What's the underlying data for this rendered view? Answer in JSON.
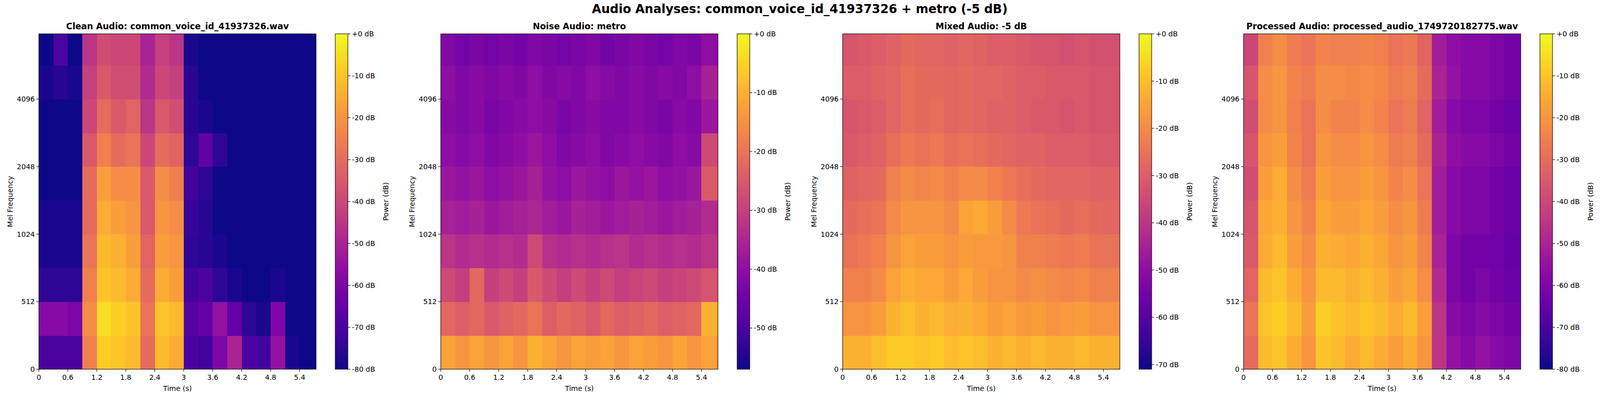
{
  "title": "Audio Analyses: common_voice_id_41937326 + metro (-5 dB)",
  "chart_data": [
    {
      "type": "heatmap",
      "title": "Clean Audio: common_voice_id_41937326.wav",
      "x_label": "Time (s)",
      "y_label": "Mel Frequency",
      "log": "y",
      "xlim": [
        0,
        5.74
      ],
      "xticks": [
        0,
        0.6,
        1.2,
        1.8,
        2.4,
        3,
        3.6,
        4.2,
        4.8,
        5.4
      ],
      "ylim": [
        0,
        8000
      ],
      "yticks": [
        0,
        512,
        1024,
        2048,
        4096
      ],
      "x_edges": [
        0,
        0.3,
        0.6,
        0.9,
        1.2,
        1.5,
        1.8,
        2.1,
        2.4,
        2.7,
        3.0,
        3.3,
        3.6,
        3.9,
        4.2,
        4.5,
        4.8,
        5.1,
        5.4,
        5.7,
        5.74
      ],
      "y_edges": [
        0,
        256,
        512,
        724,
        1024,
        1448,
        2048,
        2896,
        4096,
        5793,
        8000
      ],
      "cells": [
        [
          -70,
          -70,
          -70,
          -25,
          -8,
          -10,
          -12,
          -30,
          -12,
          -15,
          -70,
          -72,
          -60,
          -50,
          -70,
          -72,
          -55,
          -78,
          -80,
          -80
        ],
        [
          -58,
          -58,
          -60,
          -22,
          -5,
          -8,
          -10,
          -28,
          -10,
          -12,
          -68,
          -65,
          -55,
          -65,
          -75,
          -78,
          -60,
          -80,
          -80,
          -80
        ],
        [
          -75,
          -75,
          -75,
          -25,
          -10,
          -12,
          -15,
          -30,
          -15,
          -18,
          -72,
          -70,
          -75,
          -78,
          -80,
          -80,
          -78,
          -80,
          -80,
          -80
        ],
        [
          -78,
          -78,
          -78,
          -28,
          -12,
          -14,
          -18,
          -32,
          -18,
          -20,
          -75,
          -76,
          -78,
          -80,
          -80,
          -80,
          -80,
          -80,
          -80,
          -80
        ],
        [
          -78,
          -78,
          -78,
          -30,
          -15,
          -18,
          -20,
          -35,
          -20,
          -22,
          -74,
          -76,
          -80,
          -80,
          -80,
          -80,
          -80,
          -80,
          -80,
          -80
        ],
        [
          -80,
          -80,
          -80,
          -30,
          -18,
          -22,
          -22,
          -35,
          -22,
          -25,
          -72,
          -75,
          -80,
          -80,
          -80,
          -80,
          -80,
          -80,
          -80,
          -80
        ],
        [
          -80,
          -80,
          -80,
          -35,
          -25,
          -30,
          -28,
          -40,
          -30,
          -32,
          -75,
          -66,
          -75,
          -80,
          -80,
          -80,
          -80,
          -80,
          -80,
          -80
        ],
        [
          -80,
          -80,
          -80,
          -40,
          -30,
          -35,
          -32,
          -45,
          -35,
          -38,
          -76,
          -78,
          -80,
          -80,
          -80,
          -80,
          -80,
          -80,
          -80,
          -80
        ],
        [
          -78,
          -76,
          -78,
          -42,
          -35,
          -38,
          -38,
          -48,
          -40,
          -42,
          -76,
          -80,
          -80,
          -80,
          -80,
          -80,
          -80,
          -80,
          -80,
          -80
        ],
        [
          -80,
          -70,
          -80,
          -45,
          -38,
          -40,
          -40,
          -50,
          -42,
          -45,
          -78,
          -80,
          -80,
          -80,
          -80,
          -80,
          -80,
          -80,
          -80,
          -80
        ]
      ],
      "colorbar_label": "Power (dB)",
      "colorbar_range": [
        -80,
        0
      ],
      "colorbar_ticks": [
        {
          "value": 0,
          "label": "+0 dB"
        },
        {
          "value": -10,
          "label": "-10 dB"
        },
        {
          "value": -20,
          "label": "-20 dB"
        },
        {
          "value": -30,
          "label": "-30 dB"
        },
        {
          "value": -40,
          "label": "-40 dB"
        },
        {
          "value": -50,
          "label": "-50 dB"
        },
        {
          "value": -60,
          "label": "-60 dB"
        },
        {
          "value": -70,
          "label": "-70 dB"
        },
        {
          "value": -80,
          "label": "-80 dB"
        }
      ]
    },
    {
      "type": "heatmap",
      "title": "Noise Audio: metro",
      "x_label": "Time (s)",
      "y_label": "Mel Frequency",
      "log": "y",
      "xlim": [
        0,
        5.74
      ],
      "xticks": [
        0,
        0.6,
        1.2,
        1.8,
        2.4,
        3,
        3.6,
        4.2,
        4.8,
        5.4
      ],
      "ylim": [
        0,
        8000
      ],
      "yticks": [
        0,
        512,
        1024,
        2048,
        4096
      ],
      "x_edges": [
        0,
        0.3,
        0.6,
        0.9,
        1.2,
        1.5,
        1.8,
        2.1,
        2.4,
        2.7,
        3.0,
        3.3,
        3.6,
        3.9,
        4.2,
        4.5,
        4.8,
        5.1,
        5.4,
        5.7,
        5.74
      ],
      "y_edges": [
        0,
        256,
        512,
        724,
        1024,
        1448,
        2048,
        2896,
        4096,
        5793,
        8000
      ],
      "cells": [
        [
          -12,
          -14,
          -12,
          -14,
          -12,
          -14,
          -10,
          -12,
          -14,
          -12,
          -13,
          -12,
          -14,
          -12,
          -13,
          -14,
          -12,
          -14,
          -12,
          -14
        ],
        [
          -22,
          -24,
          -22,
          -25,
          -23,
          -22,
          -20,
          -24,
          -22,
          -23,
          -25,
          -22,
          -24,
          -23,
          -22,
          -24,
          -23,
          -22,
          -10,
          -10
        ],
        [
          -28,
          -30,
          -22,
          -30,
          -28,
          -30,
          -25,
          -28,
          -30,
          -28,
          -30,
          -28,
          -30,
          -29,
          -28,
          -30,
          -29,
          -28,
          -26,
          -26
        ],
        [
          -32,
          -34,
          -33,
          -34,
          -33,
          -34,
          -28,
          -33,
          -34,
          -33,
          -34,
          -33,
          -32,
          -34,
          -33,
          -34,
          -33,
          -34,
          -32,
          -32
        ],
        [
          -36,
          -37,
          -36,
          -38,
          -37,
          -36,
          -35,
          -37,
          -38,
          -36,
          -37,
          -38,
          -37,
          -36,
          -37,
          -38,
          -37,
          -36,
          -34,
          -34
        ],
        [
          -38,
          -39,
          -38,
          -40,
          -39,
          -38,
          -36,
          -39,
          -40,
          -38,
          -39,
          -40,
          -38,
          -39,
          -38,
          -40,
          -39,
          -38,
          -25,
          -25
        ],
        [
          -40,
          -41,
          -40,
          -42,
          -41,
          -40,
          -38,
          -40,
          -42,
          -41,
          -40,
          -42,
          -41,
          -40,
          -41,
          -42,
          -40,
          -41,
          -28,
          -28
        ],
        [
          -41,
          -42,
          -41,
          -43,
          -42,
          -41,
          -40,
          -41,
          -43,
          -42,
          -41,
          -42,
          -42,
          -41,
          -42,
          -43,
          -41,
          -42,
          -38,
          -38
        ],
        [
          -40,
          -42,
          -41,
          -42,
          -41,
          -42,
          -40,
          -42,
          -41,
          -42,
          -40,
          -41,
          -42,
          -41,
          -42,
          -41,
          -42,
          -40,
          -36,
          -36
        ],
        [
          -42,
          -44,
          -43,
          -44,
          -43,
          -44,
          -42,
          -43,
          -44,
          -43,
          -42,
          -44,
          -43,
          -42,
          -43,
          -44,
          -42,
          -43,
          -40,
          -40
        ]
      ],
      "colorbar_label": "Power (dB)",
      "colorbar_range": [
        -57,
        0
      ],
      "colorbar_ticks": [
        {
          "value": 0,
          "label": "+0 dB"
        },
        {
          "value": -10,
          "label": "-10 dB"
        },
        {
          "value": -20,
          "label": "-20 dB"
        },
        {
          "value": -30,
          "label": "-30 dB"
        },
        {
          "value": -40,
          "label": "-40 dB"
        },
        {
          "value": -50,
          "label": "-50 dB"
        }
      ]
    },
    {
      "type": "heatmap",
      "title": "Mixed Audio: -5 dB",
      "x_label": "Time (s)",
      "y_label": "Mel Frequency",
      "log": "y",
      "xlim": [
        0,
        5.74
      ],
      "xticks": [
        0,
        0.6,
        1.2,
        1.8,
        2.4,
        3,
        3.6,
        4.2,
        4.8,
        5.4
      ],
      "ylim": [
        0,
        8000
      ],
      "yticks": [
        0,
        512,
        1024,
        2048,
        4096
      ],
      "x_edges": [
        0,
        0.3,
        0.6,
        0.9,
        1.2,
        1.5,
        1.8,
        2.1,
        2.4,
        2.7,
        3.0,
        3.3,
        3.6,
        3.9,
        4.2,
        4.5,
        4.8,
        5.1,
        5.4,
        5.7,
        5.74
      ],
      "y_edges": [
        0,
        256,
        512,
        724,
        1024,
        1448,
        2048,
        2896,
        4096,
        5793,
        8000
      ],
      "cells": [
        [
          -12,
          -12,
          -10,
          -8,
          -8,
          -9,
          -8,
          -10,
          -9,
          -10,
          -12,
          -11,
          -12,
          -11,
          -12,
          -12,
          -11,
          -12,
          -12,
          -12
        ],
        [
          -18,
          -18,
          -16,
          -12,
          -10,
          -12,
          -11,
          -13,
          -12,
          -14,
          -16,
          -15,
          -17,
          -16,
          -18,
          -17,
          -16,
          -18,
          -18,
          -18
        ],
        [
          -22,
          -22,
          -20,
          -15,
          -13,
          -14,
          -14,
          -16,
          -14,
          -16,
          -18,
          -18,
          -20,
          -19,
          -20,
          -21,
          -20,
          -22,
          -22,
          -22
        ],
        [
          -25,
          -24,
          -22,
          -18,
          -15,
          -16,
          -16,
          -18,
          -16,
          -17,
          -17,
          -18,
          -22,
          -22,
          -23,
          -24,
          -23,
          -25,
          -25,
          -25
        ],
        [
          -27,
          -26,
          -25,
          -20,
          -18,
          -18,
          -18,
          -20,
          -15,
          -14,
          -16,
          -20,
          -24,
          -25,
          -26,
          -27,
          -26,
          -27,
          -28,
          -28
        ],
        [
          -29,
          -28,
          -27,
          -22,
          -20,
          -21,
          -20,
          -22,
          -20,
          -20,
          -22,
          -24,
          -26,
          -27,
          -28,
          -28,
          -28,
          -29,
          -29,
          -29
        ],
        [
          -31,
          -30,
          -29,
          -26,
          -24,
          -25,
          -24,
          -26,
          -25,
          -26,
          -27,
          -28,
          -29,
          -29,
          -30,
          -30,
          -30,
          -31,
          -31,
          -31
        ],
        [
          -32,
          -31,
          -30,
          -28,
          -26,
          -27,
          -26,
          -28,
          -27,
          -28,
          -29,
          -29,
          -30,
          -31,
          -31,
          -32,
          -31,
          -32,
          -32,
          -32
        ],
        [
          -30,
          -30,
          -29,
          -28,
          -26,
          -27,
          -27,
          -28,
          -27,
          -28,
          -28,
          -29,
          -30,
          -30,
          -31,
          -31,
          -31,
          -32,
          -32,
          -32
        ],
        [
          -32,
          -31,
          -30,
          -29,
          -27,
          -28,
          -28,
          -29,
          -28,
          -29,
          -30,
          -30,
          -31,
          -32,
          -32,
          -33,
          -32,
          -33,
          -33,
          -33
        ]
      ],
      "colorbar_label": "Power (dB)",
      "colorbar_range": [
        -71,
        0
      ],
      "colorbar_ticks": [
        {
          "value": 0,
          "label": "+0 dB"
        },
        {
          "value": -10,
          "label": "-10 dB"
        },
        {
          "value": -20,
          "label": "-20 dB"
        },
        {
          "value": -30,
          "label": "-30 dB"
        },
        {
          "value": -40,
          "label": "-40 dB"
        },
        {
          "value": -50,
          "label": "-50 dB"
        },
        {
          "value": -60,
          "label": "-60 dB"
        },
        {
          "value": -70,
          "label": "-70 dB"
        }
      ]
    },
    {
      "type": "heatmap",
      "title": "Processed Audio: processed_audio_1749720182775.wav",
      "x_label": "Time (s)",
      "y_label": "Mel Frequency",
      "log": "y",
      "xlim": [
        0,
        5.74
      ],
      "xticks": [
        0,
        0.6,
        1.2,
        1.8,
        2.4,
        3,
        3.6,
        4.2,
        4.8,
        5.4
      ],
      "ylim": [
        0,
        8000
      ],
      "yticks": [
        0,
        512,
        1024,
        2048,
        4096
      ],
      "x_edges": [
        0,
        0.3,
        0.6,
        0.9,
        1.2,
        1.5,
        1.8,
        2.1,
        2.4,
        2.7,
        3.0,
        3.3,
        3.6,
        3.9,
        4.2,
        4.5,
        4.8,
        5.1,
        5.4,
        5.7,
        5.74
      ],
      "y_edges": [
        0,
        256,
        512,
        724,
        1024,
        1448,
        2048,
        2896,
        4096,
        5793,
        8000
      ],
      "cells": [
        [
          -30,
          -12,
          -10,
          -15,
          -20,
          -10,
          -12,
          -15,
          -12,
          -15,
          -18,
          -15,
          -20,
          -45,
          -55,
          -58,
          -55,
          -58,
          -60,
          -60
        ],
        [
          -28,
          -10,
          -8,
          -12,
          -18,
          -8,
          -10,
          -12,
          -10,
          -12,
          -15,
          -12,
          -18,
          -45,
          -58,
          -60,
          -58,
          -60,
          -62,
          -62
        ],
        [
          -32,
          -12,
          -10,
          -15,
          -20,
          -12,
          -12,
          -14,
          -12,
          -14,
          -18,
          -16,
          -22,
          -48,
          -60,
          -62,
          -60,
          -62,
          -64,
          -64
        ],
        [
          -35,
          -15,
          -12,
          -18,
          -22,
          -14,
          -15,
          -16,
          -14,
          -16,
          -20,
          -18,
          -24,
          -50,
          -60,
          -62,
          -62,
          -63,
          -65,
          -65
        ],
        [
          -36,
          -16,
          -14,
          -20,
          -24,
          -16,
          -18,
          -18,
          -16,
          -18,
          -22,
          -20,
          -26,
          -52,
          -58,
          -60,
          -60,
          -62,
          -64,
          -64
        ],
        [
          -38,
          -18,
          -15,
          -22,
          -26,
          -18,
          -20,
          -20,
          -18,
          -20,
          -24,
          -22,
          -28,
          -52,
          -58,
          -60,
          -60,
          -62,
          -64,
          -64
        ],
        [
          -36,
          -20,
          -18,
          -24,
          -28,
          -20,
          -22,
          -22,
          -20,
          -22,
          -26,
          -25,
          -30,
          -50,
          -56,
          -58,
          -58,
          -60,
          -62,
          -62
        ],
        [
          -38,
          -22,
          -20,
          -25,
          -28,
          -22,
          -24,
          -24,
          -22,
          -24,
          -28,
          -26,
          -32,
          -52,
          -58,
          -60,
          -60,
          -62,
          -64,
          -64
        ],
        [
          -36,
          -22,
          -20,
          -24,
          -26,
          -22,
          -22,
          -23,
          -22,
          -23,
          -26,
          -25,
          -30,
          -50,
          -55,
          -58,
          -58,
          -60,
          -62,
          -62
        ],
        [
          -40,
          -25,
          -22,
          -26,
          -28,
          -24,
          -25,
          -25,
          -24,
          -25,
          -28,
          -27,
          -32,
          -52,
          -56,
          -58,
          -58,
          -60,
          -62,
          -62
        ]
      ],
      "colorbar_label": "Power (dB)",
      "colorbar_range": [
        -80,
        0
      ],
      "colorbar_ticks": [
        {
          "value": 0,
          "label": "+0 dB"
        },
        {
          "value": -10,
          "label": "-10 dB"
        },
        {
          "value": -20,
          "label": "-20 dB"
        },
        {
          "value": -30,
          "label": "-30 dB"
        },
        {
          "value": -40,
          "label": "-40 dB"
        },
        {
          "value": -50,
          "label": "-50 dB"
        },
        {
          "value": -60,
          "label": "-60 dB"
        },
        {
          "value": -70,
          "label": "-70 dB"
        },
        {
          "value": -80,
          "label": "-80 dB"
        }
      ]
    }
  ]
}
